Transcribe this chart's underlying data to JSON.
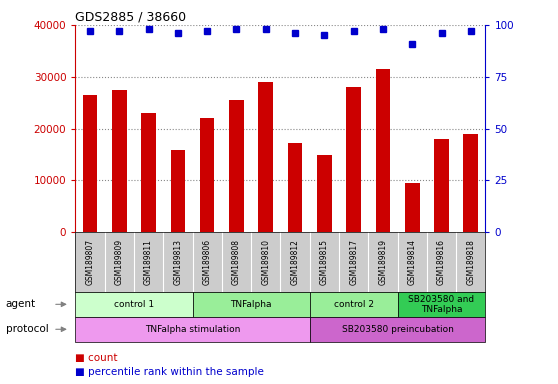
{
  "title": "GDS2885 / 38660",
  "samples": [
    "GSM189807",
    "GSM189809",
    "GSM189811",
    "GSM189813",
    "GSM189806",
    "GSM189808",
    "GSM189810",
    "GSM189812",
    "GSM189815",
    "GSM189817",
    "GSM189819",
    "GSM189814",
    "GSM189816",
    "GSM189818"
  ],
  "counts": [
    26500,
    27500,
    23000,
    15800,
    22000,
    25500,
    29000,
    17200,
    15000,
    28000,
    31500,
    9500,
    18000,
    19000
  ],
  "percentile_ranks": [
    97,
    97,
    98,
    96,
    97,
    98,
    98,
    96,
    95,
    97,
    98,
    91,
    96,
    97
  ],
  "bar_color": "#cc0000",
  "dot_color": "#0000cc",
  "ylim_left": [
    0,
    40000
  ],
  "ylim_right": [
    0,
    100
  ],
  "yticks_left": [
    0,
    10000,
    20000,
    30000,
    40000
  ],
  "yticks_right": [
    0,
    25,
    50,
    75,
    100
  ],
  "agent_groups": [
    {
      "label": "control 1",
      "start": 0,
      "end": 4,
      "color": "#ccffcc"
    },
    {
      "label": "TNFalpha",
      "start": 4,
      "end": 8,
      "color": "#99ee99"
    },
    {
      "label": "control 2",
      "start": 8,
      "end": 11,
      "color": "#99ee99"
    },
    {
      "label": "SB203580 and\nTNFalpha",
      "start": 11,
      "end": 14,
      "color": "#33cc55"
    }
  ],
  "protocol_groups": [
    {
      "label": "TNFalpha stimulation",
      "start": 0,
      "end": 8,
      "color": "#ee99ee"
    },
    {
      "label": "SB203580 preincubation",
      "start": 8,
      "end": 14,
      "color": "#cc66cc"
    }
  ],
  "sample_bg_color": "#cccccc",
  "grid_color": "#888888",
  "legend_count_color": "#cc0000",
  "legend_pct_color": "#0000cc"
}
